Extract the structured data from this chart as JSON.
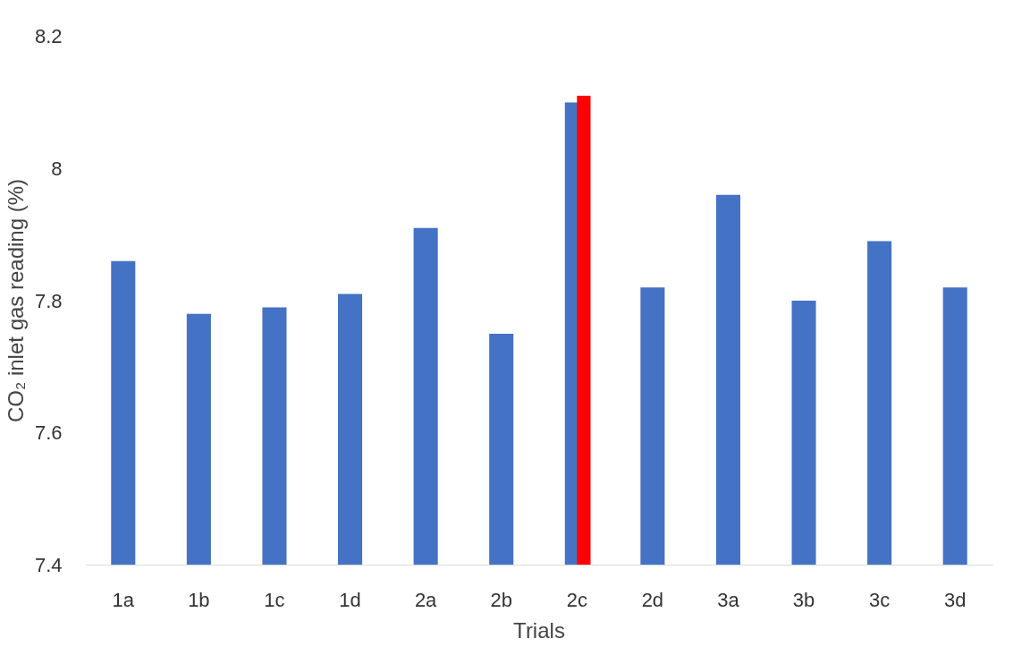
{
  "chart_data": {
    "type": "bar",
    "xlabel": "Trials",
    "ylabel": "CO₂ inlet gas reading (%)",
    "categories": [
      "1a",
      "1b",
      "1c",
      "1d",
      "2a",
      "2b",
      "2c",
      "2d",
      "3a",
      "3b",
      "3c",
      "3d"
    ],
    "series": [
      {
        "color": "#4472c4",
        "values": [
          7.86,
          7.78,
          7.79,
          7.81,
          7.91,
          7.75,
          8.1,
          7.82,
          7.96,
          7.8,
          7.89,
          7.82
        ]
      },
      {
        "color": "#ff0000",
        "values": [
          null,
          null,
          null,
          null,
          null,
          null,
          8.11,
          null,
          null,
          null,
          null,
          null
        ]
      }
    ],
    "ylim": [
      7.4,
      8.2
    ],
    "yticks": [
      7.4,
      7.6,
      7.8,
      8,
      8.2
    ],
    "grid": false
  }
}
